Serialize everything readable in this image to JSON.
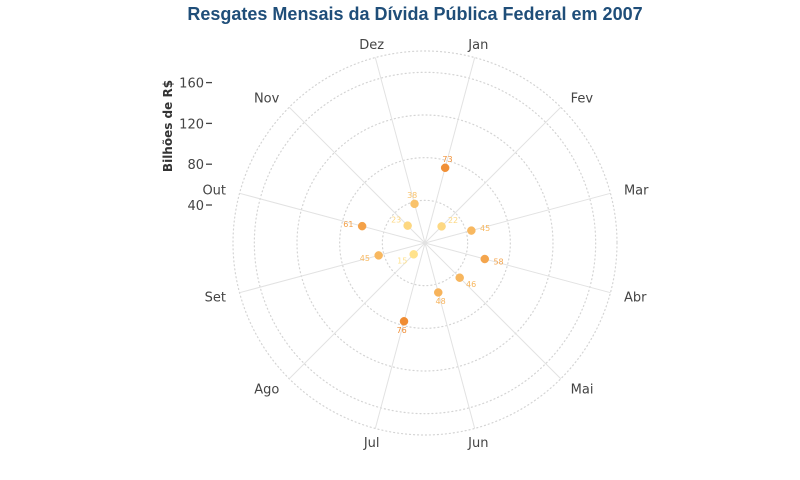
{
  "chart_data": {
    "type": "polar-scatter",
    "title": "Resgates Mensais da Dívida Pública Federal em 2007",
    "ylabel": "Bilhões de R$",
    "radial_range": [
      0,
      180
    ],
    "radial_ticks": [
      40,
      80,
      120,
      160
    ],
    "categories": [
      "Jan",
      "Fev",
      "Mar",
      "Abr",
      "Mai",
      "Jun",
      "Jul",
      "Ago",
      "Set",
      "Out",
      "Nov",
      "Dez"
    ],
    "values": [
      73,
      22,
      45,
      58,
      46,
      48,
      76,
      15,
      45,
      61,
      23,
      38
    ],
    "grid": true
  }
}
